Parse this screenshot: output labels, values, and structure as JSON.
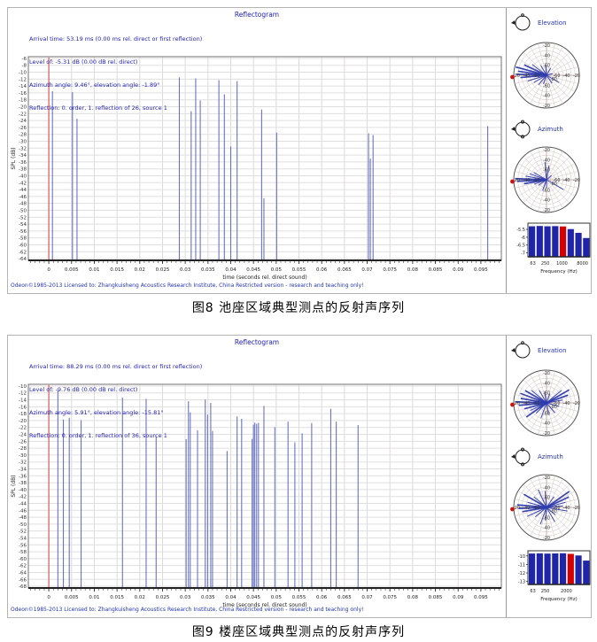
{
  "figures": [
    {
      "title": "Reflectogram",
      "info_lines": [
        "Arrival time: 53.19 ms (0.00 ms rel. direct or first reflection)",
        "Level of: -5.31 dB (0.00 dB rel. direct)",
        "Azimuth angle: 9.46°, elevation angle: -1.89°",
        "Reflection: 0. order, 1. reflection of 26, source 1"
      ],
      "footer": "Odeon©1985-2013   Licensed to: Zhangkuisheng Acoustics Research Institute, China   Restricted version - research and teaching only!",
      "caption": "图8 池座区域典型测点的反射声序列",
      "elevation": {
        "label": "Elevation",
        "ring_labels": [
          "-20",
          "-40",
          "-60"
        ],
        "center_label": "-80",
        "rays": [
          [
            165,
            0.97
          ],
          [
            172,
            0.88
          ],
          [
            178,
            0.92
          ],
          [
            185,
            0.8
          ],
          [
            155,
            0.75
          ],
          [
            143,
            0.55
          ],
          [
            197,
            0.6
          ],
          [
            210,
            0.45
          ],
          [
            120,
            0.35
          ],
          [
            95,
            0.3
          ],
          [
            60,
            0.25
          ],
          [
            330,
            0.45
          ],
          [
            305,
            0.3
          ],
          [
            230,
            0.38
          ],
          [
            250,
            0.28
          ],
          [
            15,
            0.2
          ]
        ]
      },
      "azimuth": {
        "label": "Azimuth",
        "ring_labels": [
          "-20",
          "-40",
          "-60"
        ],
        "center_label": "-80",
        "rays": [
          [
            178,
            0.95
          ],
          [
            183,
            0.9
          ],
          [
            170,
            0.65
          ],
          [
            160,
            0.55
          ],
          [
            150,
            0.45
          ],
          [
            190,
            0.7
          ],
          [
            200,
            0.4
          ],
          [
            95,
            0.55
          ],
          [
            80,
            0.45
          ],
          [
            330,
            0.6
          ],
          [
            250,
            0.35
          ],
          [
            270,
            0.25
          ],
          [
            40,
            0.2
          ],
          [
            215,
            0.3
          ]
        ]
      }
    },
    {
      "title": "Reflectogram",
      "info_lines": [
        "Arrival time: 88.29 ms (0.00 ms rel. direct or first reflection)",
        "Level of: -9.76 dB (0.00 dB rel. direct)",
        "Azimuth angle: 5.91°, elevation angle: -15.81°",
        "Reflection: 0. order, 1. reflection of 36, source 1"
      ],
      "footer": "Odeon©1985-2013   Licensed to: Zhangkuisheng Acoustics Research Institute, China   Restricted version - research and teaching only!",
      "caption": "图9 楼座区域典型测点的反射声序列",
      "elevation": {
        "label": "Elevation",
        "ring_labels": [
          "-20",
          "-40",
          "-60"
        ],
        "center_label": "-80",
        "rays": [
          [
            160,
            0.85
          ],
          [
            150,
            0.75
          ],
          [
            170,
            0.8
          ],
          [
            178,
            0.95
          ],
          [
            185,
            0.85
          ],
          [
            195,
            0.7
          ],
          [
            205,
            0.55
          ],
          [
            215,
            0.75
          ],
          [
            225,
            0.45
          ],
          [
            30,
            0.8
          ],
          [
            20,
            0.7
          ],
          [
            40,
            0.6
          ],
          [
            10,
            0.5
          ],
          [
            345,
            0.4
          ],
          [
            120,
            0.45
          ],
          [
            100,
            0.35
          ],
          [
            70,
            0.3
          ],
          [
            250,
            0.5
          ],
          [
            280,
            0.35
          ],
          [
            310,
            0.4
          ],
          [
            140,
            0.6
          ]
        ]
      },
      "azimuth": {
        "label": "Azimuth",
        "ring_labels": [
          "-20",
          "-40",
          "-60"
        ],
        "center_label": "-80",
        "rays": [
          [
            175,
            0.9
          ],
          [
            182,
            0.85
          ],
          [
            190,
            0.75
          ],
          [
            165,
            0.6
          ],
          [
            150,
            0.8
          ],
          [
            140,
            0.5
          ],
          [
            205,
            0.65
          ],
          [
            220,
            0.45
          ],
          [
            35,
            0.85
          ],
          [
            25,
            0.75
          ],
          [
            15,
            0.6
          ],
          [
            5,
            0.5
          ],
          [
            350,
            0.65
          ],
          [
            55,
            0.4
          ],
          [
            95,
            0.5
          ],
          [
            115,
            0.6
          ],
          [
            250,
            0.55
          ],
          [
            265,
            0.4
          ],
          [
            300,
            0.5
          ],
          [
            320,
            0.35
          ]
        ]
      }
    }
  ],
  "chart_data": [
    {
      "type": "stem",
      "title": "Reflectogram",
      "xlabel": "time (seconds rel. direct sound)",
      "ylabel": "SPL (dB)",
      "xlim": [
        -0.0045,
        0.0995
      ],
      "ylim": [
        -64.5,
        -5.5
      ],
      "xticks": [
        "0",
        "0.005",
        "0.01",
        "0.015",
        "0.02",
        "0.025",
        "0.03",
        "0.035",
        "0.04",
        "0.045",
        "0.05",
        "0.055",
        "0.06",
        "0.065",
        "0.07",
        "0.075",
        "0.08",
        "0.085",
        "0.09",
        "0.095"
      ],
      "yticks": [
        "-6",
        "-8",
        "-10",
        "-12",
        "-14",
        "-16",
        "-18",
        "-20",
        "-22",
        "-24",
        "-26",
        "-28",
        "-30",
        "-32",
        "-34",
        "-36",
        "-38",
        "-40",
        "-42",
        "-44",
        "-46",
        "-48",
        "-50",
        "-52",
        "-54",
        "-56",
        "-58",
        "-60",
        "-62",
        "-64"
      ],
      "direct": {
        "t": 0,
        "color": "#dd7070"
      },
      "reflections": [
        [
          0.0008,
          -15.5
        ],
        [
          0.0052,
          -15.8
        ],
        [
          0.0062,
          -23.5
        ],
        [
          0.0287,
          -11.5
        ],
        [
          0.0313,
          -21.3
        ],
        [
          0.0323,
          -11.8
        ],
        [
          0.0333,
          -18.2
        ],
        [
          0.0374,
          -12.3
        ],
        [
          0.0386,
          -16.4
        ],
        [
          0.04,
          -31.5
        ],
        [
          0.0414,
          -12.6
        ],
        [
          0.0468,
          -20.8
        ],
        [
          0.0473,
          -46.5
        ],
        [
          0.0501,
          -27.5
        ],
        [
          0.0703,
          -27.7
        ],
        [
          0.0707,
          -35.0
        ],
        [
          0.0713,
          -28.2
        ],
        [
          0.0965,
          -25.6
        ]
      ]
    },
    {
      "type": "bar",
      "categories": [
        "63",
        "125",
        "250",
        "500",
        "1000",
        "2000",
        "4000",
        "8000"
      ],
      "values": [
        -5.3,
        -5.28,
        -5.3,
        -5.29,
        -5.31,
        -5.48,
        -5.72,
        -6.05
      ],
      "highlight_index": 4,
      "bar_color": "#1f24a8",
      "highlight_color": "#d40000",
      "yticks": [
        "-5.5",
        "-6",
        "-6.5",
        "-7"
      ],
      "ybox": [
        -5.1,
        -7.25
      ],
      "xtick_labels": [
        "63",
        "250",
        "1000",
        "8000"
      ],
      "xtick_pos": [
        0.08,
        0.28,
        0.55,
        0.88
      ],
      "xlabel": "Frequency (Hz)"
    },
    {
      "type": "stem",
      "title": "Reflectogram",
      "xlabel": "time (seconds rel. direct sound)",
      "ylabel": "SPL (dB)",
      "xlim": [
        -0.0045,
        0.0995
      ],
      "ylim": [
        -68.5,
        -9.5
      ],
      "xticks": [
        "0",
        "0.005",
        "0.01",
        "0.015",
        "0.02",
        "0.025",
        "0.03",
        "0.035",
        "0.04",
        "0.045",
        "0.05",
        "0.055",
        "0.06",
        "0.065",
        "0.07",
        "0.075",
        "0.08",
        "0.085",
        "0.09",
        "0.095"
      ],
      "yticks": [
        "-10",
        "-12",
        "-14",
        "-16",
        "-18",
        "-20",
        "-22",
        "-24",
        "-26",
        "-28",
        "-30",
        "-32",
        "-34",
        "-36",
        "-38",
        "-40",
        "-42",
        "-44",
        "-46",
        "-48",
        "-50",
        "-52",
        "-54",
        "-56",
        "-58",
        "-60",
        "-62",
        "-64",
        "-66",
        "-68"
      ],
      "direct": {
        "t": 0,
        "color": "#dd7070"
      },
      "reflections": [
        [
          0.002,
          -11.2
        ],
        [
          0.0032,
          -19.7
        ],
        [
          0.0045,
          -19.2
        ],
        [
          0.0071,
          -19.9
        ],
        [
          0.0162,
          -13.3
        ],
        [
          0.0214,
          -13.7
        ],
        [
          0.0236,
          -24.6
        ],
        [
          0.0302,
          -25.4
        ],
        [
          0.0307,
          -14.4
        ],
        [
          0.0311,
          -17.6
        ],
        [
          0.0327,
          -22.8
        ],
        [
          0.0344,
          -13.9
        ],
        [
          0.0349,
          -18.3
        ],
        [
          0.0356,
          -14.9
        ],
        [
          0.036,
          -23.0
        ],
        [
          0.0392,
          -28.8
        ],
        [
          0.0414,
          -18.8
        ],
        [
          0.0424,
          -19.5
        ],
        [
          0.0447,
          -25.3
        ],
        [
          0.045,
          -21.2
        ],
        [
          0.0453,
          -20.6
        ],
        [
          0.0457,
          -20.9
        ],
        [
          0.0461,
          -20.7
        ],
        [
          0.0473,
          -15.8
        ],
        [
          0.0497,
          -21.9
        ],
        [
          0.0526,
          -20.3
        ],
        [
          0.0541,
          -26.3
        ],
        [
          0.0557,
          -23.7
        ],
        [
          0.0578,
          -20.7
        ],
        [
          0.062,
          -16.6
        ],
        [
          0.0632,
          -20.3
        ],
        [
          0.068,
          -21.3
        ]
      ]
    },
    {
      "type": "bar",
      "categories": [
        "63",
        "125",
        "250",
        "500",
        "1000",
        "2000",
        "4000",
        "8000"
      ],
      "values": [
        -9.72,
        -9.7,
        -9.73,
        -9.71,
        -9.69,
        -9.76,
        -9.95,
        -10.55
      ],
      "highlight_index": 5,
      "bar_color": "#1f24a8",
      "highlight_color": "#d40000",
      "yticks": [
        "-10",
        "-11",
        "-12",
        "-13"
      ],
      "ybox": [
        -9.4,
        -13.35
      ],
      "xtick_labels": [
        "63",
        "250",
        "2000"
      ],
      "xtick_pos": [
        0.08,
        0.28,
        0.62
      ],
      "xlabel": "Frequency (Hz)"
    }
  ]
}
